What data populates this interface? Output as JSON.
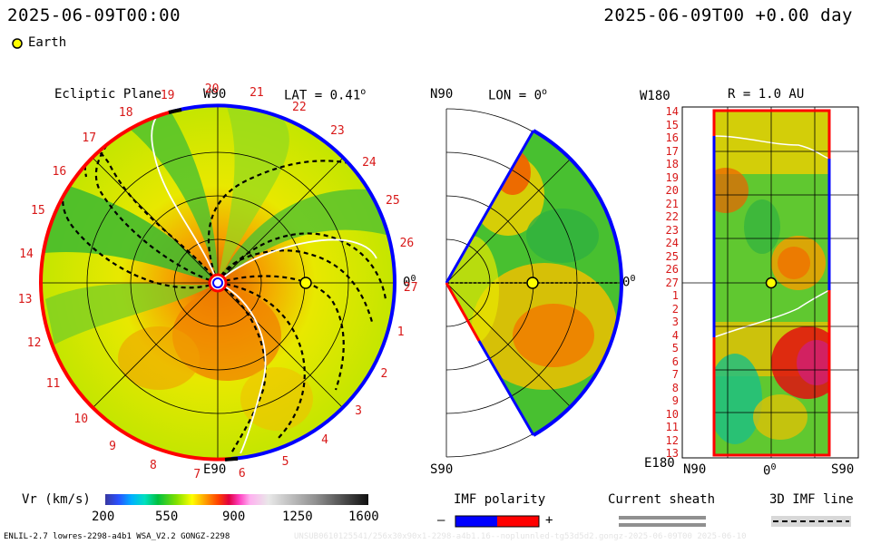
{
  "header": {
    "timestamp_left": "2025-06-09T00:00",
    "timestamp_right": "2025-06-09T00 +0.00 day",
    "legend_earth": "Earth"
  },
  "ecliptic": {
    "title": "Ecliptic Plane",
    "lat": "LAT = 0.41",
    "lat_deg": "o",
    "w90": "W90",
    "e90": "E90",
    "zero": "0",
    "zero_deg": "0",
    "sector_ticks": [
      "19",
      "20",
      "21",
      "22",
      "23",
      "24",
      "25",
      "26",
      "27",
      "1",
      "2",
      "3",
      "4",
      "5",
      "6",
      "7",
      "8",
      "9",
      "10",
      "11",
      "12",
      "13",
      "14",
      "15",
      "16",
      "17",
      "18"
    ]
  },
  "meridional": {
    "n90": "N90",
    "s90": "S90",
    "lon": "LON = 0",
    "lon_deg": "o",
    "zero": "0",
    "zero_deg": "0"
  },
  "radial": {
    "title": "R = 1.0 AU",
    "w180": "W180",
    "e180": "E180",
    "n90": "N90",
    "s90": "S90",
    "zero": "0",
    "zero_deg": "0",
    "sector_ticks": [
      "14",
      "15",
      "16",
      "17",
      "18",
      "19",
      "20",
      "21",
      "22",
      "23",
      "24",
      "25",
      "26",
      "27",
      "1",
      "2",
      "3",
      "4",
      "5",
      "6",
      "7",
      "8",
      "9",
      "10",
      "11",
      "12",
      "13"
    ]
  },
  "colorbar": {
    "label": "Vr (km/s)",
    "ticks": [
      "200",
      "550",
      "900",
      "1250",
      "1600"
    ]
  },
  "legend": {
    "imf_title": "IMF polarity",
    "imf_minus": "–",
    "imf_plus": "+",
    "sheath_title": "Current sheath",
    "imf_line_title": "3D IMF line"
  },
  "footer": {
    "model": "ENLIL-2.7 lowres-2298-a4b1 WSA_V2.2 GONGZ-2298",
    "run_id": "UNSUB0610125541/256x30x90x1-2298-a4b1.16--noplunnled-tg53d5d2.gongz-2025-06-09T00  2025-06-10"
  },
  "colors": {
    "positive_imf": "#ff0000",
    "negative_imf": "#0000ff",
    "earth": "#ffff00",
    "sector_label": "#d81818"
  }
}
